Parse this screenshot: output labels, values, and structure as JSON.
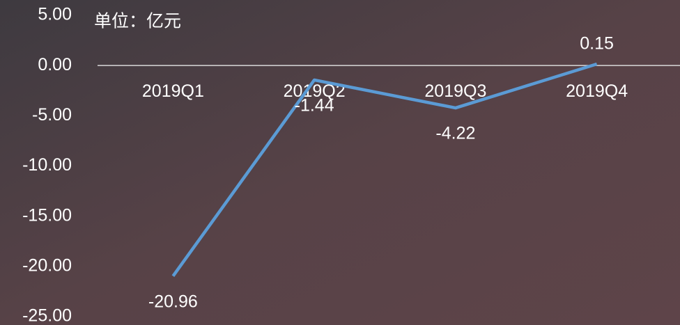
{
  "chart_data": {
    "type": "line",
    "annotation": "单位：亿元",
    "categories": [
      "2019Q1",
      "2019Q2",
      "2019Q3",
      "2019Q4"
    ],
    "series": [
      {
        "name": null,
        "color": "#5b9bd5",
        "values": [
          -20.96,
          -1.44,
          -4.22,
          0.15
        ]
      }
    ],
    "ylim": [
      -25,
      5
    ],
    "yticks": [
      {
        "value": 5,
        "label": "5.00"
      },
      {
        "value": 0,
        "label": "0.00"
      },
      {
        "value": -5,
        "label": "-5.00"
      },
      {
        "value": -10,
        "label": "-10.00"
      },
      {
        "value": -15,
        "label": "-15.00"
      },
      {
        "value": -20,
        "label": "-20.00"
      },
      {
        "value": -25,
        "label": "-25.00"
      }
    ],
    "grid": false
  }
}
